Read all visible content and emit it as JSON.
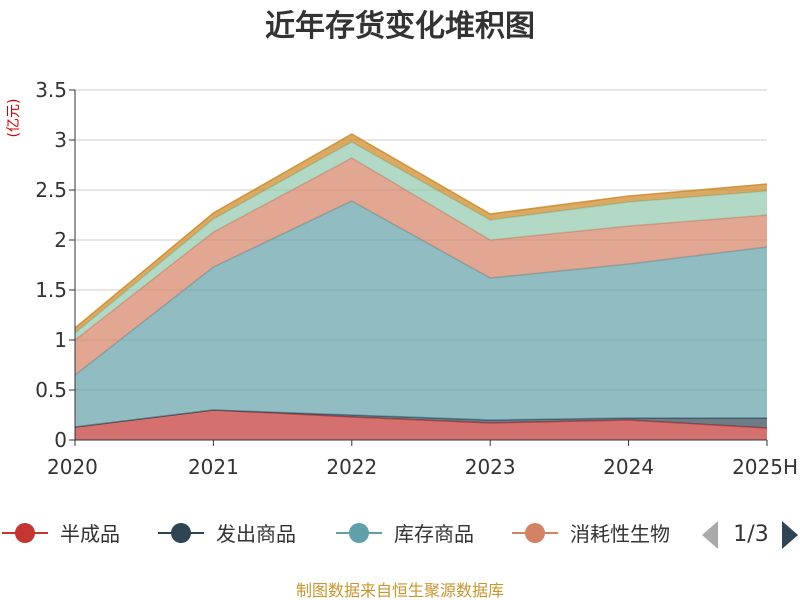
{
  "chart_data": {
    "type": "area",
    "stacked": true,
    "title": "近年存货变化堆积图",
    "unit_label": "(亿元)",
    "x": [
      "2020",
      "2021",
      "2022",
      "2023",
      "2024",
      "2025H"
    ],
    "ylim": [
      0,
      3.5
    ],
    "yticks": [
      "0",
      "0.5",
      "1",
      "1.5",
      "2",
      "2.5",
      "3",
      "3.5"
    ],
    "ytick_values": [
      0,
      0.5,
      1,
      1.5,
      2,
      2.5,
      3,
      3.5
    ],
    "grid": true,
    "series": [
      {
        "name": "半成品",
        "color": "#c23531",
        "values": [
          0.13,
          0.3,
          0.23,
          0.17,
          0.2,
          0.12
        ]
      },
      {
        "name": "发出商品",
        "color": "#2f4554",
        "values": [
          0.0,
          0.0,
          0.02,
          0.03,
          0.02,
          0.1
        ]
      },
      {
        "name": "库存商品",
        "color": "#61a0a8",
        "values": [
          0.52,
          1.43,
          2.14,
          1.42,
          1.54,
          1.71
        ]
      },
      {
        "name": "消耗性生物",
        "color": "#d48265",
        "values": [
          0.35,
          0.35,
          0.43,
          0.38,
          0.38,
          0.32
        ]
      },
      {
        "color": "#91c7ae",
        "values": [
          0.07,
          0.13,
          0.16,
          0.2,
          0.24,
          0.24
        ]
      },
      {
        "color": "#ca8622",
        "values": [
          0.05,
          0.06,
          0.08,
          0.06,
          0.06,
          0.07
        ]
      }
    ],
    "legend": {
      "position": "bottom",
      "page": "1/3"
    },
    "source": "制图数据来自恒生聚源数据库"
  }
}
